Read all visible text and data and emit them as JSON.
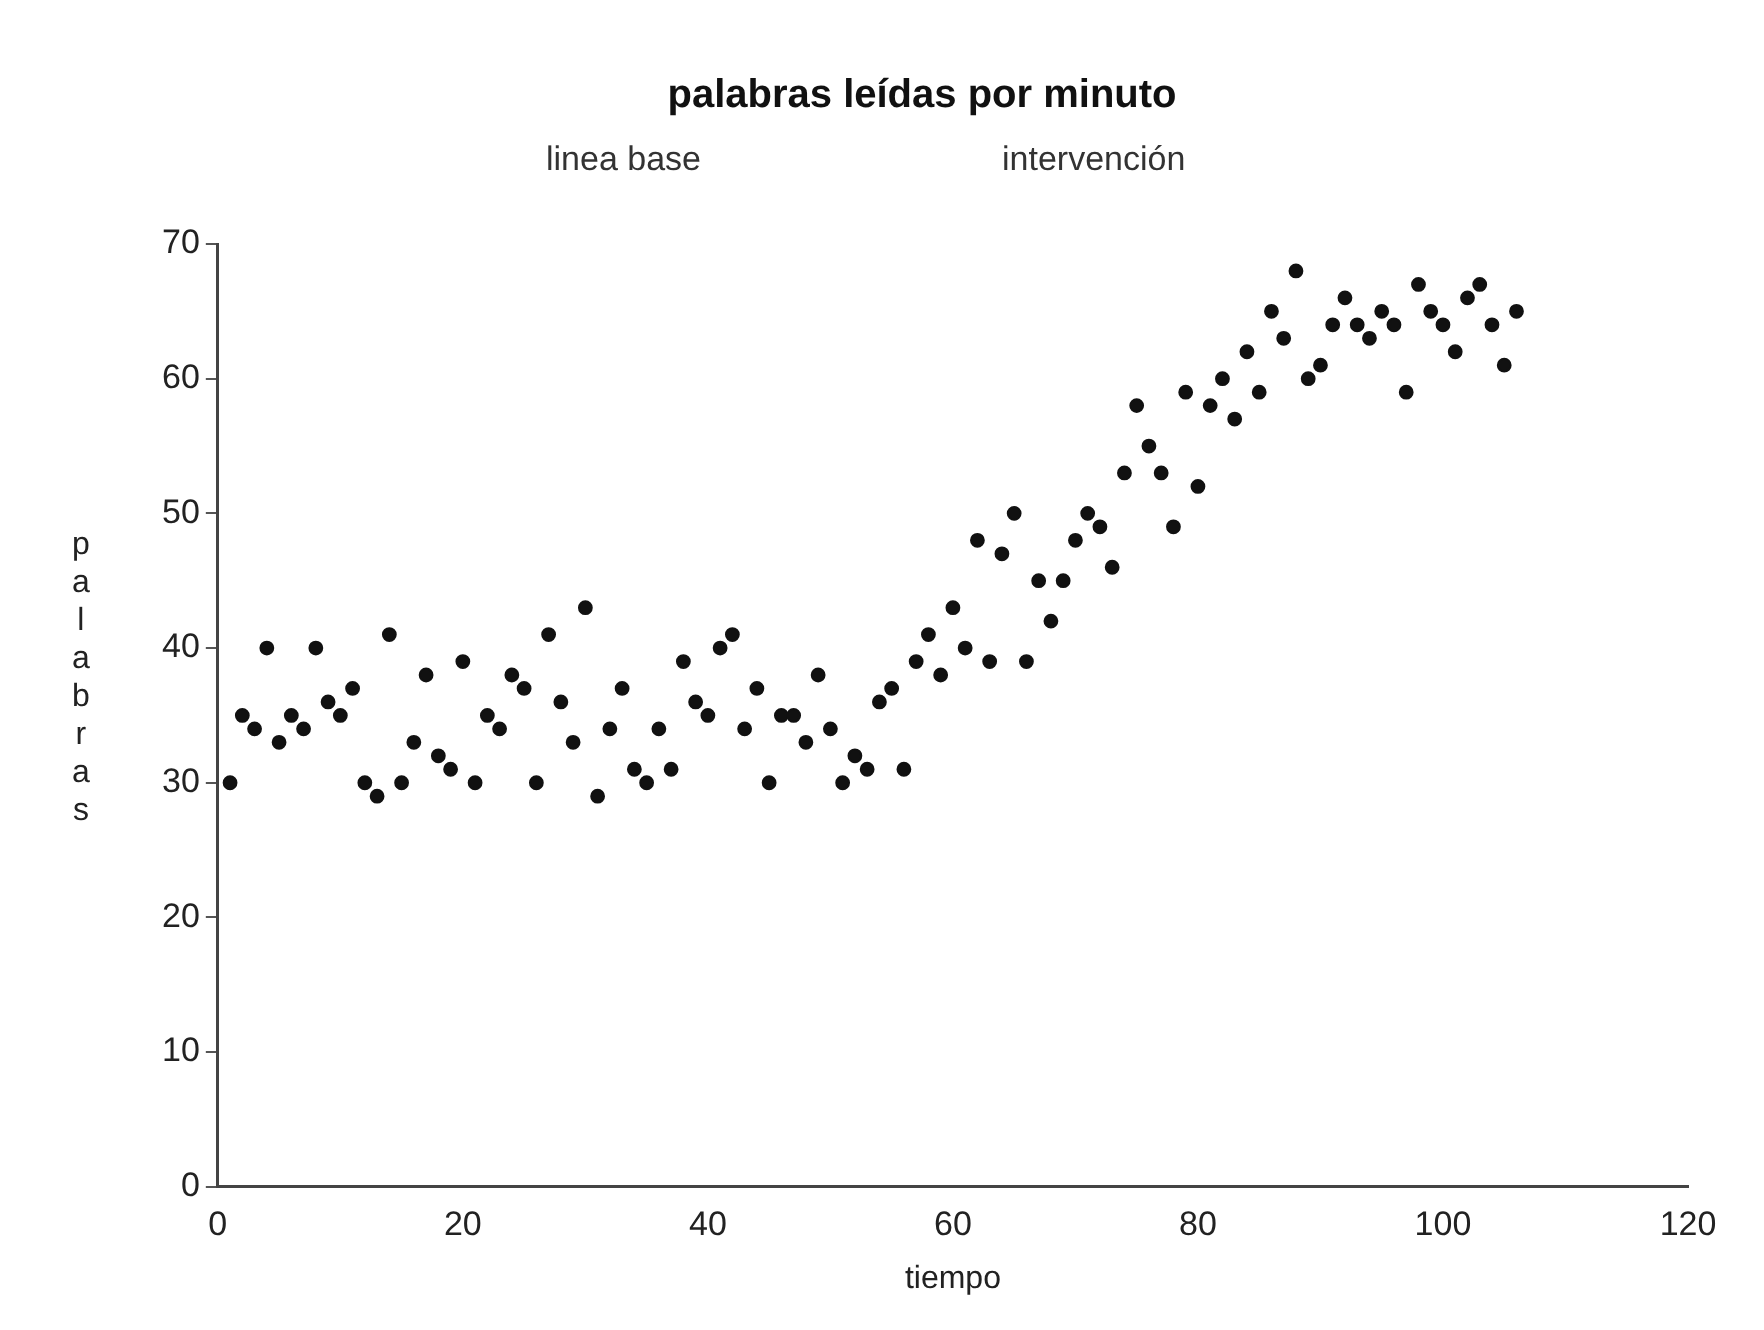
{
  "chart_data": {
    "type": "scatter",
    "title": "palabras leídas por minuto",
    "annotations": [
      "linea base",
      "intervención"
    ],
    "xlabel": "tiempo",
    "ylabel": "palabras",
    "x": [
      1,
      2,
      3,
      4,
      5,
      6,
      7,
      8,
      9,
      10,
      11,
      12,
      13,
      14,
      15,
      16,
      17,
      18,
      19,
      20,
      21,
      22,
      23,
      24,
      25,
      26,
      27,
      28,
      29,
      30,
      31,
      32,
      33,
      34,
      35,
      36,
      37,
      38,
      39,
      40,
      41,
      42,
      43,
      44,
      45,
      46,
      47,
      48,
      49,
      50,
      51,
      52,
      53,
      54,
      55,
      56,
      57,
      58,
      59,
      60,
      61,
      62,
      63,
      64,
      65,
      66,
      67,
      68,
      69,
      70,
      71,
      72,
      73,
      74,
      75,
      76,
      77,
      78,
      79,
      80,
      81,
      82,
      83,
      84,
      85,
      86,
      87,
      88,
      89,
      90,
      91,
      92,
      93,
      94,
      95,
      96,
      97,
      98,
      99,
      100,
      101,
      102,
      103,
      104,
      105,
      106
    ],
    "series": [
      {
        "color": "#111111",
        "values": [
          30,
          35,
          34,
          40,
          33,
          35,
          34,
          40,
          36,
          35,
          37,
          30,
          29,
          41,
          30,
          33,
          38,
          32,
          31,
          39,
          30,
          35,
          34,
          38,
          37,
          30,
          41,
          36,
          33,
          43,
          29,
          34,
          37,
          31,
          30,
          34,
          31,
          39,
          36,
          35,
          40,
          41,
          34,
          37,
          30,
          35,
          35,
          33,
          38,
          34,
          30,
          32,
          31,
          36,
          37,
          31,
          39,
          41,
          38,
          43,
          40,
          48,
          39,
          47,
          50,
          39,
          45,
          42,
          45,
          48,
          50,
          49,
          46,
          53,
          58,
          55,
          53,
          49,
          59,
          52,
          58,
          60,
          57,
          62,
          59,
          65,
          63,
          68,
          60,
          61,
          64,
          66,
          64,
          63,
          65,
          64,
          59,
          67,
          65,
          64,
          62,
          66,
          67,
          64,
          61,
          65
        ]
      }
    ],
    "xlim": [
      0,
      120
    ],
    "xticks": [
      0,
      20,
      40,
      60,
      80,
      100,
      120
    ],
    "ylim": [
      0,
      70
    ],
    "yticks": [
      0,
      10,
      20,
      30,
      40,
      50,
      60,
      70
    ],
    "grid": false,
    "legend": false,
    "marker": "circle"
  }
}
